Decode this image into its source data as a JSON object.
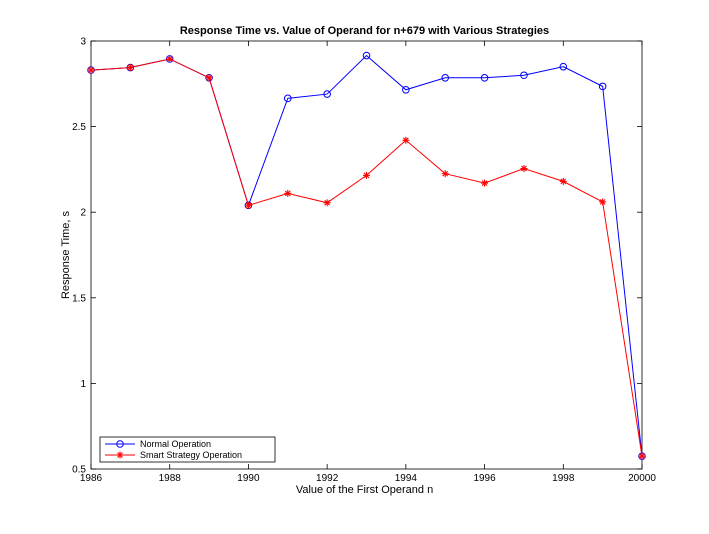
{
  "chart_data": {
    "type": "line",
    "title": "Response Time vs. Value of Operand for n+679 with Various Strategies",
    "xlabel": "Value of the First Operand n",
    "ylabel": "Response Time, s",
    "xlim": [
      1986,
      20000
    ],
    "ylim": [
      0.5,
      3
    ],
    "x_ticks": [
      1986,
      1988,
      1990,
      1992,
      1994,
      1996,
      1998,
      20000
    ],
    "x_tick_labels": [
      "1986",
      "1988",
      "1990",
      "1992",
      "1994",
      "1996",
      "1998",
      "20000"
    ],
    "y_ticks": [
      0.5,
      1,
      1.5,
      2,
      2.5,
      3
    ],
    "y_tick_labels": [
      "0.5",
      "1",
      "1.5",
      "2",
      "2.5",
      "3"
    ],
    "x": [
      1986,
      1987,
      1988,
      1989,
      1990,
      1991,
      1992,
      1993,
      1994,
      1995,
      1996,
      1997,
      1998,
      1999,
      20000
    ],
    "grid": false,
    "legend_position": "bottom-left",
    "series": [
      {
        "name": "Normal Operation",
        "color": "#0000ff",
        "marker": "circle",
        "values": [
          2.83,
          2.845,
          2.895,
          2.785,
          2.04,
          2.665,
          2.69,
          2.915,
          2.715,
          2.785,
          2.785,
          2.8,
          2.85,
          2.735,
          0.575
        ]
      },
      {
        "name": "Smart Strategy Operation",
        "color": "#ff0000",
        "marker": "asterisk",
        "values": [
          2.83,
          2.845,
          2.895,
          2.785,
          2.04,
          2.11,
          2.055,
          2.215,
          2.42,
          2.225,
          2.17,
          2.255,
          2.18,
          2.06,
          0.575
        ]
      }
    ]
  }
}
